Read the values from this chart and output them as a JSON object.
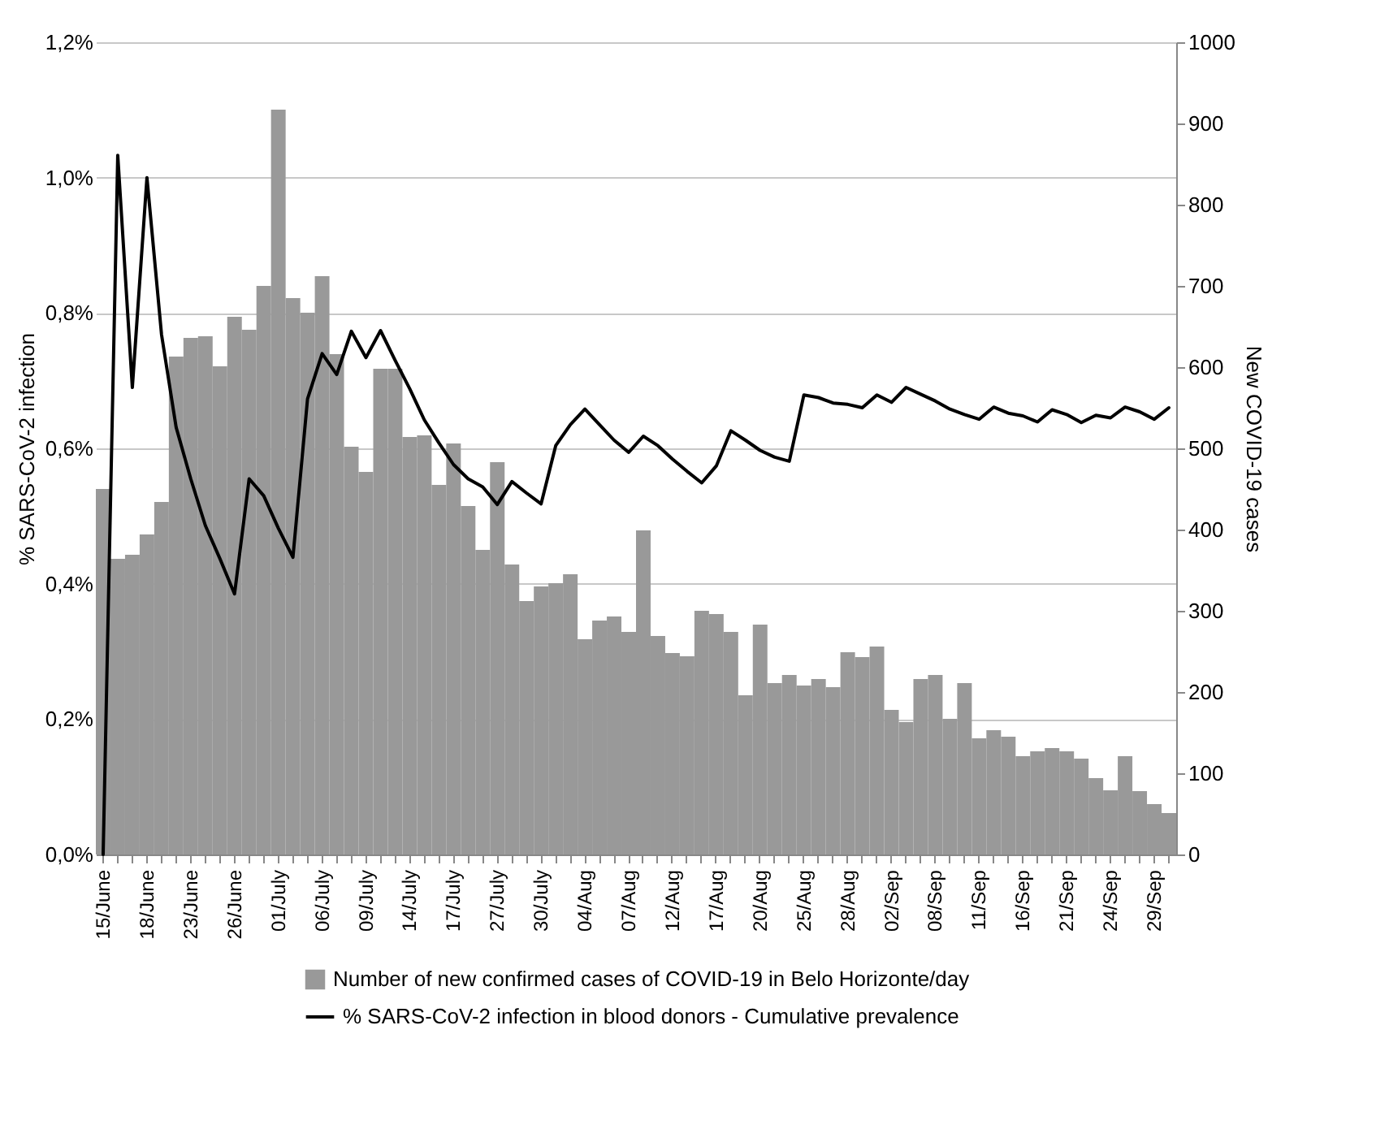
{
  "chart_data": {
    "type": "bar",
    "xlabel": null,
    "ylabel": "% SARS-CoV-2 infection",
    "y2label": "New COVID-19 cases",
    "categories": [
      "15/June",
      null,
      null,
      "18/June",
      null,
      null,
      "23/June",
      null,
      null,
      "26/June",
      null,
      null,
      "01/July",
      null,
      null,
      "06/July",
      null,
      null,
      "09/July",
      null,
      null,
      "14/July",
      null,
      null,
      "17/July",
      null,
      null,
      "27/July",
      null,
      null,
      "30/July",
      null,
      null,
      "04/Aug",
      null,
      null,
      "07/Aug",
      null,
      null,
      "12/Aug",
      null,
      null,
      "17/Aug",
      null,
      null,
      "20/Aug",
      null,
      null,
      "25/Aug",
      null,
      null,
      "28/Aug",
      null,
      null,
      "02/Sep",
      null,
      null,
      "08/Sep",
      null,
      null,
      "11/Sep",
      null,
      null,
      "16/Sep",
      null,
      null,
      "21/Sep",
      null,
      null,
      "24/Sep",
      null,
      null,
      "29/Sep",
      null
    ],
    "series": [
      {
        "name": "Number of new confirmed cases of COVID-19 in Belo Horizonte/day",
        "axis": "y2",
        "color": "#999999",
        "values": [
          450,
          364,
          369,
          394,
          434,
          613,
          636,
          638,
          601,
          662,
          646,
          700,
          917,
          685,
          667,
          712,
          616,
          502,
          471,
          598,
          598,
          514,
          516,
          455,
          506,
          429,
          375,
          483,
          357,
          312,
          330,
          334,
          345,
          265,
          288,
          293,
          274,
          399,
          269,
          248,
          244,
          300,
          296,
          274,
          196,
          283,
          211,
          221,
          208,
          216,
          206,
          249,
          243,
          256,
          178,
          163,
          216,
          221,
          167,
          211,
          143,
          153,
          145,
          121,
          127,
          131,
          127,
          118,
          94,
          79,
          121,
          78,
          62,
          51
        ]
      },
      {
        "name": "% SARS-CoV-2 infection in blood donors - Cumulative prevalence",
        "type": "line",
        "color": "#000000",
        "values": [
          0,
          1.033,
          0.69,
          1.0,
          0.768,
          0.631,
          0.555,
          0.486,
          0.437,
          0.385,
          0.555,
          0.53,
          0.482,
          0.439,
          0.673,
          0.74,
          0.709,
          0.773,
          0.734,
          0.774,
          0.73,
          0.688,
          0.642,
          0.608,
          0.576,
          0.555,
          0.543,
          0.517,
          0.551,
          0.534,
          0.518,
          0.604,
          0.635,
          0.658,
          0.635,
          0.612,
          0.594,
          0.618,
          0.604,
          0.584,
          0.566,
          0.549,
          0.574,
          0.626,
          0.612,
          0.597,
          0.587,
          0.581,
          0.679,
          0.675,
          0.667,
          0.665,
          0.66,
          0.679,
          0.668,
          0.69,
          0.68,
          0.67,
          0.658,
          0.65,
          0.643,
          0.661,
          0.652,
          0.648,
          0.639,
          0.657,
          0.65,
          0.638,
          0.649,
          0.645,
          0.661,
          0.654,
          0.643,
          0.66
        ]
      }
    ],
    "ylim": [
      0,
      1.2
    ],
    "yticks": [
      {
        "value": 0,
        "label": "0,0%"
      },
      {
        "value": 0.2,
        "label": "0,2%"
      },
      {
        "value": 0.4,
        "label": "0,4%"
      },
      {
        "value": 0.6,
        "label": "0,6%"
      },
      {
        "value": 0.8,
        "label": "0,8%"
      },
      {
        "value": 1.0,
        "label": "1,0%"
      },
      {
        "value": 1.2,
        "label": "1,2%"
      }
    ],
    "y2lim": [
      0,
      1000
    ],
    "y2ticks": [
      0,
      100,
      200,
      300,
      400,
      500,
      600,
      700,
      800,
      900,
      1000
    ],
    "grid": "y",
    "legend": "bottom"
  }
}
